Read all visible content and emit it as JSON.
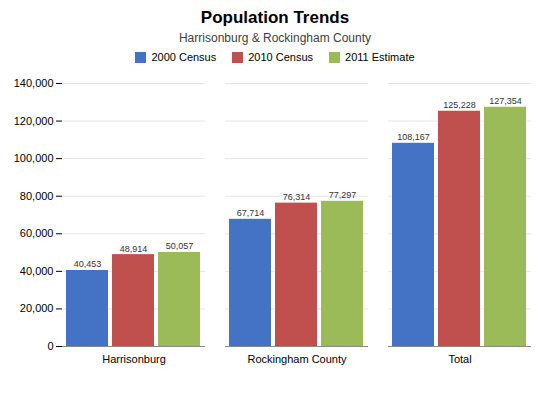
{
  "chart_data": {
    "type": "bar",
    "title": "Population Trends",
    "subtitle": "Harrisonburg  & Rockingham  County",
    "categories": [
      "Harrisonburg",
      "Rockingham County",
      "Total"
    ],
    "series": [
      {
        "name": "2000 Census",
        "color": "#4472C4",
        "values": [
          40453,
          67714,
          108167
        ],
        "value_labels": [
          "40,453",
          "67,714",
          "108,167"
        ]
      },
      {
        "name": "2010 Census",
        "color": "#C0504D",
        "values": [
          48914,
          76314,
          125228
        ],
        "value_labels": [
          "48,914",
          "76,314",
          "125,228"
        ]
      },
      {
        "name": "2011 Estimate",
        "color": "#9BBB59",
        "values": [
          50057,
          77297,
          127354
        ],
        "value_labels": [
          "50,057",
          "77,297",
          "127,354"
        ]
      }
    ],
    "ylim": [
      0,
      140000
    ],
    "yticks": [
      0,
      {
        "value": 20000,
        "label": "20,000"
      },
      {
        "value": 40000,
        "label": "40,000"
      },
      {
        "value": 60000,
        "label": "60,000"
      },
      {
        "value": 80000,
        "label": "80,000"
      },
      {
        "value": 100000,
        "label": "100,000"
      },
      {
        "value": 120000,
        "label": "120,000"
      },
      {
        "value": 140000,
        "label": "140,000"
      }
    ],
    "grid": true,
    "legend": "top",
    "data_labels": true
  }
}
